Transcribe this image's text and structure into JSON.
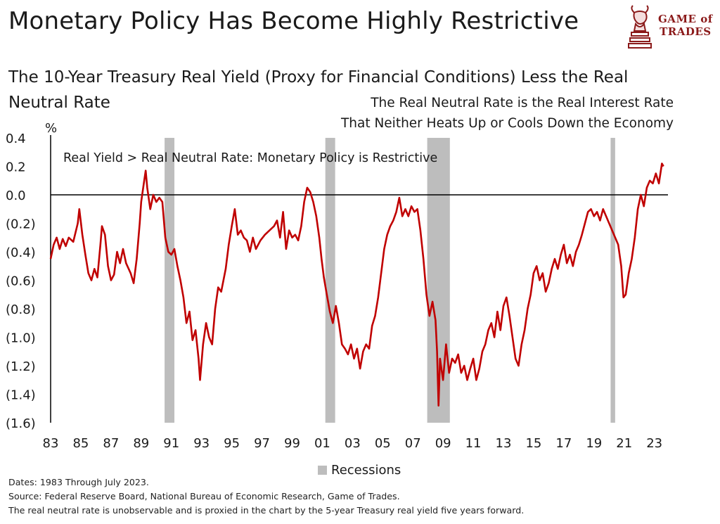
{
  "header": {
    "title": "Monetary Policy Has Become Highly Restrictive",
    "subtitle": "The 10-Year Treasury Real Yield (Proxy for Financial Conditions) Less the Real Neutral Rate",
    "logo_line1": "GAME of",
    "logo_line2": "TRADES"
  },
  "annotations": {
    "neutral_note_line1": "The Real Neutral Rate is the Real Interest Rate",
    "neutral_note_line2": "That Neither Heats Up or Cools Down the Economy",
    "restrictive_note": "Real Yield > Real Neutral Rate: Monetary Policy is Restrictive"
  },
  "legend": {
    "recessions": "Recessions"
  },
  "footer": {
    "dates": "Dates: 1983 Through July 2023.",
    "source": "Source: Federal Reserve Board, National Bureau of Economic Research, Game of Trades.",
    "method": "The real neutral rate is unobservable and is proxied in the chart by the 5-year Treasury real yield five years forward."
  },
  "colors": {
    "line": "#c00000",
    "recession": "#bdbdbd",
    "logo": "#8b1a1a"
  },
  "chart_data": {
    "type": "line",
    "ylabel": "%",
    "ylim": [
      -1.6,
      0.4
    ],
    "y_ticks": [
      {
        "v": 0.4,
        "label": "0.4"
      },
      {
        "v": 0.2,
        "label": "0.2"
      },
      {
        "v": 0.0,
        "label": "0.0"
      },
      {
        "v": -0.2,
        "label": "(0.2)"
      },
      {
        "v": -0.4,
        "label": "(0.4)"
      },
      {
        "v": -0.6,
        "label": "(0.6)"
      },
      {
        "v": -0.8,
        "label": "(0.8)"
      },
      {
        "v": -1.0,
        "label": "(1.0)"
      },
      {
        "v": -1.2,
        "label": "(1.2)"
      },
      {
        "v": -1.4,
        "label": "(1.4)"
      },
      {
        "v": -1.6,
        "label": "(1.6)"
      }
    ],
    "xlim": [
      1983,
      2023.9
    ],
    "x_ticks": [
      {
        "v": 1983,
        "label": "83"
      },
      {
        "v": 1985,
        "label": "85"
      },
      {
        "v": 1987,
        "label": "87"
      },
      {
        "v": 1989,
        "label": "89"
      },
      {
        "v": 1991,
        "label": "91"
      },
      {
        "v": 1993,
        "label": "93"
      },
      {
        "v": 1995,
        "label": "95"
      },
      {
        "v": 1997,
        "label": "97"
      },
      {
        "v": 1999,
        "label": "99"
      },
      {
        "v": 2001,
        "label": "01"
      },
      {
        "v": 2003,
        "label": "03"
      },
      {
        "v": 2005,
        "label": "05"
      },
      {
        "v": 2007,
        "label": "07"
      },
      {
        "v": 2009,
        "label": "09"
      },
      {
        "v": 2011,
        "label": "11"
      },
      {
        "v": 2013,
        "label": "13"
      },
      {
        "v": 2015,
        "label": "15"
      },
      {
        "v": 2017,
        "label": "17"
      },
      {
        "v": 2019,
        "label": "19"
      },
      {
        "v": 2021,
        "label": "21"
      },
      {
        "v": 2023,
        "label": "23"
      }
    ],
    "recessions": [
      [
        1990.55,
        1991.2
      ],
      [
        2001.2,
        2001.85
      ],
      [
        2007.95,
        2009.45
      ],
      [
        2020.1,
        2020.4
      ]
    ],
    "series": [
      {
        "points": [
          [
            1983.0,
            -0.45
          ],
          [
            1983.2,
            -0.35
          ],
          [
            1983.4,
            -0.3
          ],
          [
            1983.6,
            -0.38
          ],
          [
            1983.8,
            -0.31
          ],
          [
            1984.0,
            -0.36
          ],
          [
            1984.2,
            -0.3
          ],
          [
            1984.5,
            -0.33
          ],
          [
            1984.8,
            -0.2
          ],
          [
            1984.9,
            -0.1
          ],
          [
            1985.1,
            -0.28
          ],
          [
            1985.3,
            -0.42
          ],
          [
            1985.5,
            -0.55
          ],
          [
            1985.7,
            -0.6
          ],
          [
            1985.9,
            -0.52
          ],
          [
            1986.1,
            -0.58
          ],
          [
            1986.3,
            -0.35
          ],
          [
            1986.4,
            -0.22
          ],
          [
            1986.6,
            -0.28
          ],
          [
            1986.8,
            -0.5
          ],
          [
            1987.0,
            -0.6
          ],
          [
            1987.2,
            -0.56
          ],
          [
            1987.4,
            -0.4
          ],
          [
            1987.6,
            -0.48
          ],
          [
            1987.8,
            -0.38
          ],
          [
            1988.0,
            -0.48
          ],
          [
            1988.3,
            -0.55
          ],
          [
            1988.5,
            -0.62
          ],
          [
            1988.7,
            -0.45
          ],
          [
            1988.9,
            -0.2
          ],
          [
            1989.0,
            -0.05
          ],
          [
            1989.2,
            0.1
          ],
          [
            1989.3,
            0.17
          ],
          [
            1989.4,
            0.05
          ],
          [
            1989.6,
            -0.1
          ],
          [
            1989.8,
            0.0
          ],
          [
            1990.0,
            -0.05
          ],
          [
            1990.2,
            -0.02
          ],
          [
            1990.4,
            -0.05
          ],
          [
            1990.6,
            -0.3
          ],
          [
            1990.8,
            -0.4
          ],
          [
            1991.0,
            -0.42
          ],
          [
            1991.2,
            -0.38
          ],
          [
            1991.4,
            -0.5
          ],
          [
            1991.6,
            -0.6
          ],
          [
            1991.8,
            -0.72
          ],
          [
            1992.0,
            -0.9
          ],
          [
            1992.2,
            -0.82
          ],
          [
            1992.4,
            -1.02
          ],
          [
            1992.6,
            -0.95
          ],
          [
            1992.8,
            -1.15
          ],
          [
            1992.9,
            -1.3
          ],
          [
            1993.1,
            -1.05
          ],
          [
            1993.3,
            -0.9
          ],
          [
            1993.5,
            -1.0
          ],
          [
            1993.7,
            -1.05
          ],
          [
            1993.9,
            -0.8
          ],
          [
            1994.1,
            -0.65
          ],
          [
            1994.3,
            -0.68
          ],
          [
            1994.6,
            -0.52
          ],
          [
            1994.8,
            -0.35
          ],
          [
            1995.0,
            -0.22
          ],
          [
            1995.2,
            -0.1
          ],
          [
            1995.4,
            -0.28
          ],
          [
            1995.6,
            -0.25
          ],
          [
            1995.8,
            -0.3
          ],
          [
            1996.0,
            -0.32
          ],
          [
            1996.2,
            -0.4
          ],
          [
            1996.4,
            -0.3
          ],
          [
            1996.6,
            -0.38
          ],
          [
            1996.9,
            -0.32
          ],
          [
            1997.2,
            -0.28
          ],
          [
            1997.5,
            -0.25
          ],
          [
            1997.8,
            -0.22
          ],
          [
            1998.0,
            -0.18
          ],
          [
            1998.2,
            -0.3
          ],
          [
            1998.4,
            -0.12
          ],
          [
            1998.6,
            -0.38
          ],
          [
            1998.8,
            -0.25
          ],
          [
            1999.0,
            -0.3
          ],
          [
            1999.2,
            -0.28
          ],
          [
            1999.4,
            -0.32
          ],
          [
            1999.6,
            -0.22
          ],
          [
            1999.8,
            -0.05
          ],
          [
            2000.0,
            0.05
          ],
          [
            2000.2,
            0.02
          ],
          [
            2000.4,
            -0.05
          ],
          [
            2000.6,
            -0.15
          ],
          [
            2000.8,
            -0.3
          ],
          [
            2000.95,
            -0.45
          ],
          [
            2001.1,
            -0.58
          ],
          [
            2001.3,
            -0.7
          ],
          [
            2001.5,
            -0.82
          ],
          [
            2001.7,
            -0.9
          ],
          [
            2001.9,
            -0.78
          ],
          [
            2002.1,
            -0.9
          ],
          [
            2002.3,
            -1.05
          ],
          [
            2002.5,
            -1.08
          ],
          [
            2002.7,
            -1.12
          ],
          [
            2002.9,
            -1.05
          ],
          [
            2003.1,
            -1.15
          ],
          [
            2003.3,
            -1.08
          ],
          [
            2003.5,
            -1.22
          ],
          [
            2003.7,
            -1.1
          ],
          [
            2003.9,
            -1.05
          ],
          [
            2004.1,
            -1.08
          ],
          [
            2004.3,
            -0.92
          ],
          [
            2004.5,
            -0.85
          ],
          [
            2004.7,
            -0.72
          ],
          [
            2004.9,
            -0.55
          ],
          [
            2005.1,
            -0.38
          ],
          [
            2005.3,
            -0.28
          ],
          [
            2005.5,
            -0.22
          ],
          [
            2005.7,
            -0.18
          ],
          [
            2005.9,
            -0.12
          ],
          [
            2006.1,
            -0.02
          ],
          [
            2006.3,
            -0.15
          ],
          [
            2006.5,
            -0.1
          ],
          [
            2006.7,
            -0.15
          ],
          [
            2006.9,
            -0.08
          ],
          [
            2007.1,
            -0.12
          ],
          [
            2007.3,
            -0.1
          ],
          [
            2007.5,
            -0.25
          ],
          [
            2007.7,
            -0.45
          ],
          [
            2007.9,
            -0.7
          ],
          [
            2008.1,
            -0.85
          ],
          [
            2008.3,
            -0.75
          ],
          [
            2008.5,
            -0.88
          ],
          [
            2008.6,
            -1.1
          ],
          [
            2008.7,
            -1.48
          ],
          [
            2008.8,
            -1.15
          ],
          [
            2009.0,
            -1.3
          ],
          [
            2009.2,
            -1.05
          ],
          [
            2009.4,
            -1.25
          ],
          [
            2009.6,
            -1.15
          ],
          [
            2009.8,
            -1.18
          ],
          [
            2010.0,
            -1.12
          ],
          [
            2010.2,
            -1.25
          ],
          [
            2010.4,
            -1.2
          ],
          [
            2010.6,
            -1.3
          ],
          [
            2010.8,
            -1.22
          ],
          [
            2011.0,
            -1.15
          ],
          [
            2011.2,
            -1.3
          ],
          [
            2011.4,
            -1.22
          ],
          [
            2011.6,
            -1.1
          ],
          [
            2011.8,
            -1.05
          ],
          [
            2012.0,
            -0.95
          ],
          [
            2012.2,
            -0.9
          ],
          [
            2012.4,
            -1.0
          ],
          [
            2012.6,
            -0.82
          ],
          [
            2012.8,
            -0.95
          ],
          [
            2013.0,
            -0.78
          ],
          [
            2013.2,
            -0.72
          ],
          [
            2013.4,
            -0.85
          ],
          [
            2013.6,
            -1.0
          ],
          [
            2013.8,
            -1.15
          ],
          [
            2014.0,
            -1.2
          ],
          [
            2014.2,
            -1.05
          ],
          [
            2014.4,
            -0.95
          ],
          [
            2014.6,
            -0.8
          ],
          [
            2014.8,
            -0.7
          ],
          [
            2015.0,
            -0.55
          ],
          [
            2015.2,
            -0.5
          ],
          [
            2015.4,
            -0.6
          ],
          [
            2015.6,
            -0.55
          ],
          [
            2015.8,
            -0.68
          ],
          [
            2016.0,
            -0.62
          ],
          [
            2016.2,
            -0.52
          ],
          [
            2016.4,
            -0.45
          ],
          [
            2016.6,
            -0.52
          ],
          [
            2016.8,
            -0.42
          ],
          [
            2017.0,
            -0.35
          ],
          [
            2017.2,
            -0.48
          ],
          [
            2017.4,
            -0.42
          ],
          [
            2017.6,
            -0.5
          ],
          [
            2017.8,
            -0.4
          ],
          [
            2018.0,
            -0.35
          ],
          [
            2018.2,
            -0.28
          ],
          [
            2018.4,
            -0.2
          ],
          [
            2018.6,
            -0.12
          ],
          [
            2018.8,
            -0.1
          ],
          [
            2019.0,
            -0.15
          ],
          [
            2019.2,
            -0.12
          ],
          [
            2019.4,
            -0.18
          ],
          [
            2019.6,
            -0.1
          ],
          [
            2019.8,
            -0.15
          ],
          [
            2020.0,
            -0.2
          ],
          [
            2020.2,
            -0.25
          ],
          [
            2020.4,
            -0.3
          ],
          [
            2020.6,
            -0.35
          ],
          [
            2020.8,
            -0.5
          ],
          [
            2020.95,
            -0.72
          ],
          [
            2021.1,
            -0.7
          ],
          [
            2021.3,
            -0.55
          ],
          [
            2021.5,
            -0.45
          ],
          [
            2021.7,
            -0.3
          ],
          [
            2021.9,
            -0.1
          ],
          [
            2022.1,
            0.0
          ],
          [
            2022.3,
            -0.08
          ],
          [
            2022.5,
            0.05
          ],
          [
            2022.7,
            0.1
          ],
          [
            2022.9,
            0.08
          ],
          [
            2023.1,
            0.15
          ],
          [
            2023.3,
            0.08
          ],
          [
            2023.5,
            0.22
          ],
          [
            2023.6,
            0.2
          ]
        ]
      }
    ]
  }
}
